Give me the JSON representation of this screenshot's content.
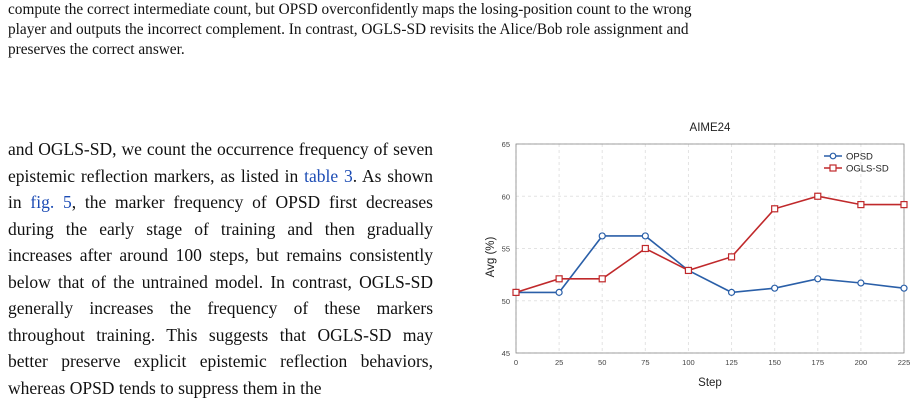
{
  "caption_lines": [
    "compute the correct intermediate count, but OPSD overconfidently maps the losing-position count to the wrong",
    "player and outputs the incorrect complement. In contrast, OGLS-SD revisits the Alice/Bob role assignment and",
    "preserves the correct answer."
  ],
  "body": {
    "part1": "and OGLS-SD, we count the occurrence frequency of seven epistemic reflection markers, as listed in ",
    "ref1": "table 3",
    "part2": ". As shown in ",
    "ref2": "fig. 5",
    "part3": ", the marker frequency of OPSD first decreases during the early stage of training and then gradually increases after around 100 steps, but remains consistently below that of the untrained model. In contrast, OGLS-SD generally increases the frequency of these markers throughout training. This suggests that OGLS-SD may better preserve explicit epistemic reflection behaviors, whereas OPSD tends to suppress them in the"
  },
  "chart_data": {
    "type": "line",
    "title": "AIME24",
    "xlabel": "Step",
    "ylabel": "Avg (%)",
    "x": [
      0,
      25,
      50,
      75,
      100,
      125,
      150,
      175,
      200,
      225
    ],
    "xlim": [
      0,
      225
    ],
    "ylim": [
      45,
      65
    ],
    "yticks": [
      45,
      50,
      55,
      60,
      65
    ],
    "grid": true,
    "legend_position": "top-right",
    "series": [
      {
        "name": "OPSD",
        "marker": "circle",
        "color": "#2a5fa8",
        "values": [
          50.8,
          50.8,
          56.2,
          56.2,
          52.9,
          50.8,
          51.2,
          52.1,
          51.7,
          51.2
        ]
      },
      {
        "name": "OGLS-SD",
        "marker": "square",
        "color": "#c0292b",
        "values": [
          50.8,
          52.1,
          52.1,
          55.0,
          52.9,
          54.2,
          58.8,
          60.0,
          59.2,
          59.2
        ]
      }
    ]
  }
}
